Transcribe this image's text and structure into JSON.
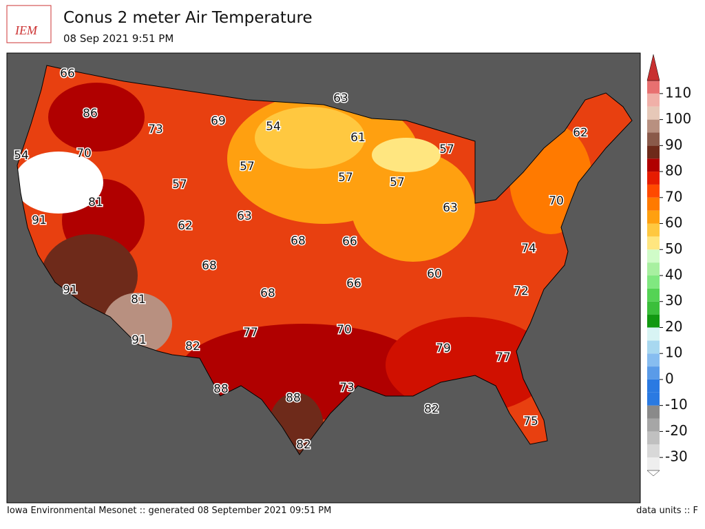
{
  "header": {
    "logo": "IEM",
    "title": "Conus 2 meter Air Temperature",
    "subtitle": "08 Sep 2021 9:51 PM"
  },
  "map": {
    "contour_labels": [
      66,
      86,
      73,
      69,
      63,
      54,
      61,
      57,
      62,
      54,
      70,
      57,
      57,
      57,
      57,
      81,
      70,
      91,
      62,
      63,
      63,
      68,
      66,
      74,
      68,
      60,
      66,
      72,
      91,
      81,
      68,
      77,
      70,
      91,
      82,
      79,
      77,
      88,
      88,
      73,
      82,
      75,
      82
    ]
  },
  "colorbar": {
    "min": -35,
    "max": 115,
    "step": 5,
    "colors": [
      "#eeeeee",
      "#d8d8d8",
      "#c0c0c0",
      "#a6a6a6",
      "#8a8a8a",
      "#2a7ae2",
      "#2a7ae2",
      "#5a9be8",
      "#87bdf0",
      "#a8d8f0",
      "#d8f4f4",
      "#119911",
      "#3bbf3b",
      "#55d355",
      "#80e880",
      "#a8f0a0",
      "#d0fcc8",
      "#ffe680",
      "#ffc840",
      "#ffa010",
      "#ff7a00",
      "#ff4a00",
      "#e61c00",
      "#b00000",
      "#6e2a1a",
      "#8a5a4a",
      "#b89080",
      "#e6c8b8",
      "#f0b0a8",
      "#e87070"
    ],
    "under_color": "#ffffff",
    "over_color": "#c83030",
    "ticks": [
      -30,
      -20,
      -10,
      0,
      10,
      20,
      30,
      40,
      50,
      60,
      70,
      80,
      90,
      100,
      110
    ]
  },
  "footer": {
    "left": "Iowa Environmental Mesonet :: generated 08 September 2021 09:51 PM",
    "right": "data units :: F"
  }
}
